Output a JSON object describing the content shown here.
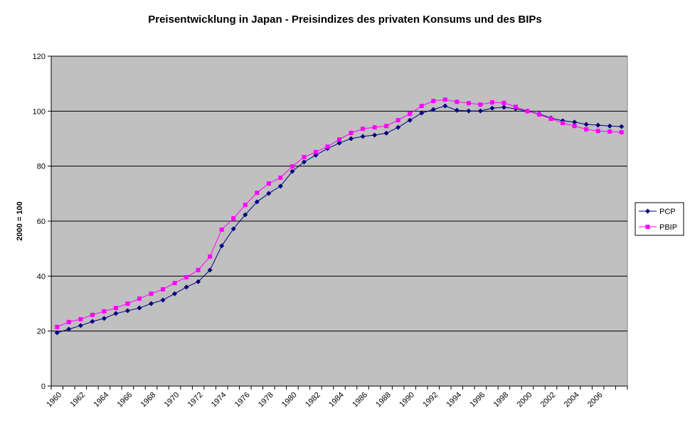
{
  "chart_data": {
    "type": "line",
    "title": "Preisentwicklung in Japan - Preisindizes des privaten Konsums und des BIPs",
    "y_label": "2000 = 100",
    "categories": [
      "1960",
      null,
      "1962",
      null,
      "1964",
      null,
      "1966",
      null,
      "1968",
      null,
      "1970",
      null,
      "1972",
      null,
      "1974",
      null,
      "1976",
      null,
      "1978",
      null,
      "1980",
      null,
      "1982",
      null,
      "1984",
      null,
      "1986",
      null,
      "1988",
      null,
      "1990",
      null,
      "1992",
      null,
      "1994",
      null,
      "1996",
      null,
      "1998",
      null,
      "2000",
      null,
      "2002",
      null,
      "2004",
      null,
      "2006",
      null,
      null
    ],
    "series": [
      {
        "name": "PCP",
        "color": "#000080",
        "marker": "diamond",
        "values": [
          19.4,
          20.7,
          22,
          23.5,
          24.6,
          26.4,
          27.4,
          28.4,
          30,
          31.3,
          33.6,
          36,
          38,
          42.2,
          51,
          57.2,
          62.3,
          67,
          70.1,
          72.7,
          78.1,
          81.5,
          84,
          86.4,
          88.4,
          90,
          90.8,
          91.3,
          92,
          94.1,
          96.7,
          99.3,
          100.6,
          101.9,
          100.3,
          100.1,
          100.1,
          101.1,
          101.4,
          100.9,
          100,
          99,
          97.5,
          96.5,
          96,
          95.2,
          94.9,
          94.6,
          94.4
        ]
      },
      {
        "name": "PBIP",
        "color": "#ff00ff",
        "marker": "square",
        "values": [
          21.5,
          23.3,
          24.3,
          25.9,
          27.2,
          28.4,
          30,
          31.8,
          33.6,
          35.2,
          37.5,
          39.6,
          42.2,
          47.1,
          56.9,
          61,
          65.9,
          70.3,
          73.7,
          75.8,
          79.9,
          83.3,
          85.1,
          87.1,
          89.7,
          92.1,
          93.6,
          94.1,
          94.6,
          96.7,
          99,
          101.9,
          103.7,
          104.2,
          103.4,
          102.9,
          102.4,
          103.2,
          103,
          101.6,
          100,
          98.8,
          97.2,
          95.7,
          94.6,
          93.4,
          92.8,
          92.6,
          92.3
        ]
      }
    ],
    "ylim": [
      0,
      120
    ],
    "yticks": [
      0,
      20,
      40,
      60,
      80,
      100,
      120
    ],
    "grid": true,
    "plot_background": "#c0c0c0",
    "legend": "right"
  }
}
